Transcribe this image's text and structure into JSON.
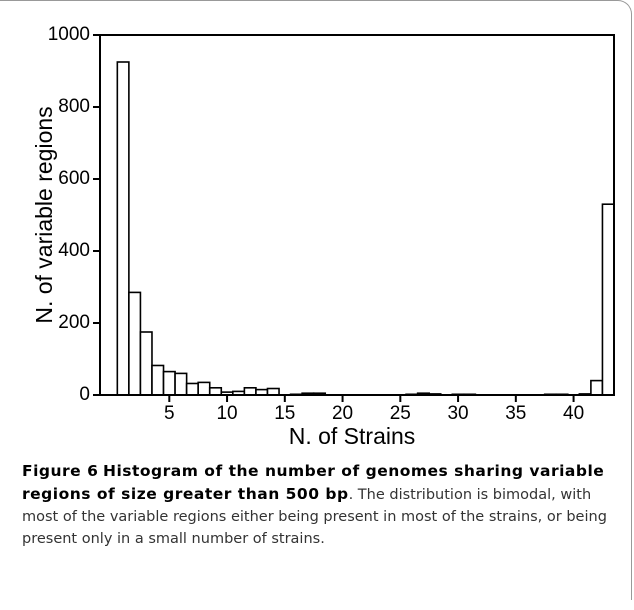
{
  "chart_data": {
    "type": "histogram",
    "xlabel": "N. of Strains",
    "ylabel": "N. of variable regions",
    "bins": [
      0.5,
      1.5,
      2.5,
      3.5,
      4.5,
      5.5,
      6.5,
      7.5,
      8.5,
      9.5,
      10.5,
      11.5,
      12.5,
      13.5,
      14.5,
      15.5,
      16.5,
      17.5,
      18.5,
      19.5,
      20.5,
      21.5,
      22.5,
      23.5,
      24.5,
      25.5,
      26.5,
      27.5,
      28.5,
      29.5,
      30.5,
      31.5,
      32.5,
      33.5,
      34.5,
      35.5,
      36.5,
      37.5,
      38.5,
      39.5,
      40.5,
      41.5,
      42.5,
      43.5
    ],
    "values": [
      925,
      285,
      175,
      82,
      65,
      60,
      32,
      35,
      20,
      8,
      10,
      20,
      15,
      18,
      0,
      2,
      5,
      5,
      0,
      0,
      0,
      0,
      0,
      0,
      0,
      2,
      5,
      3,
      0,
      2,
      2,
      0,
      0,
      0,
      0,
      0,
      0,
      2,
      2,
      0,
      3,
      40,
      530
    ],
    "color": "#ffffff",
    "edge_color": "#000000",
    "xlim": [
      -1,
      43.5
    ],
    "ylim": [
      0,
      1000
    ],
    "xticks": [
      5,
      10,
      15,
      20,
      25,
      30,
      35,
      40
    ],
    "yticks": [
      0,
      200,
      400,
      600,
      800,
      1000
    ],
    "grid": false
  },
  "caption": {
    "label": "Figure 6",
    "title": "Histogram of the number of genomes sharing variable regions of size greater than 500 bp",
    "text": ". The distribution is bimodal, with most of the variable regions either being present in most of the strains, or being present only in a small number of strains."
  }
}
